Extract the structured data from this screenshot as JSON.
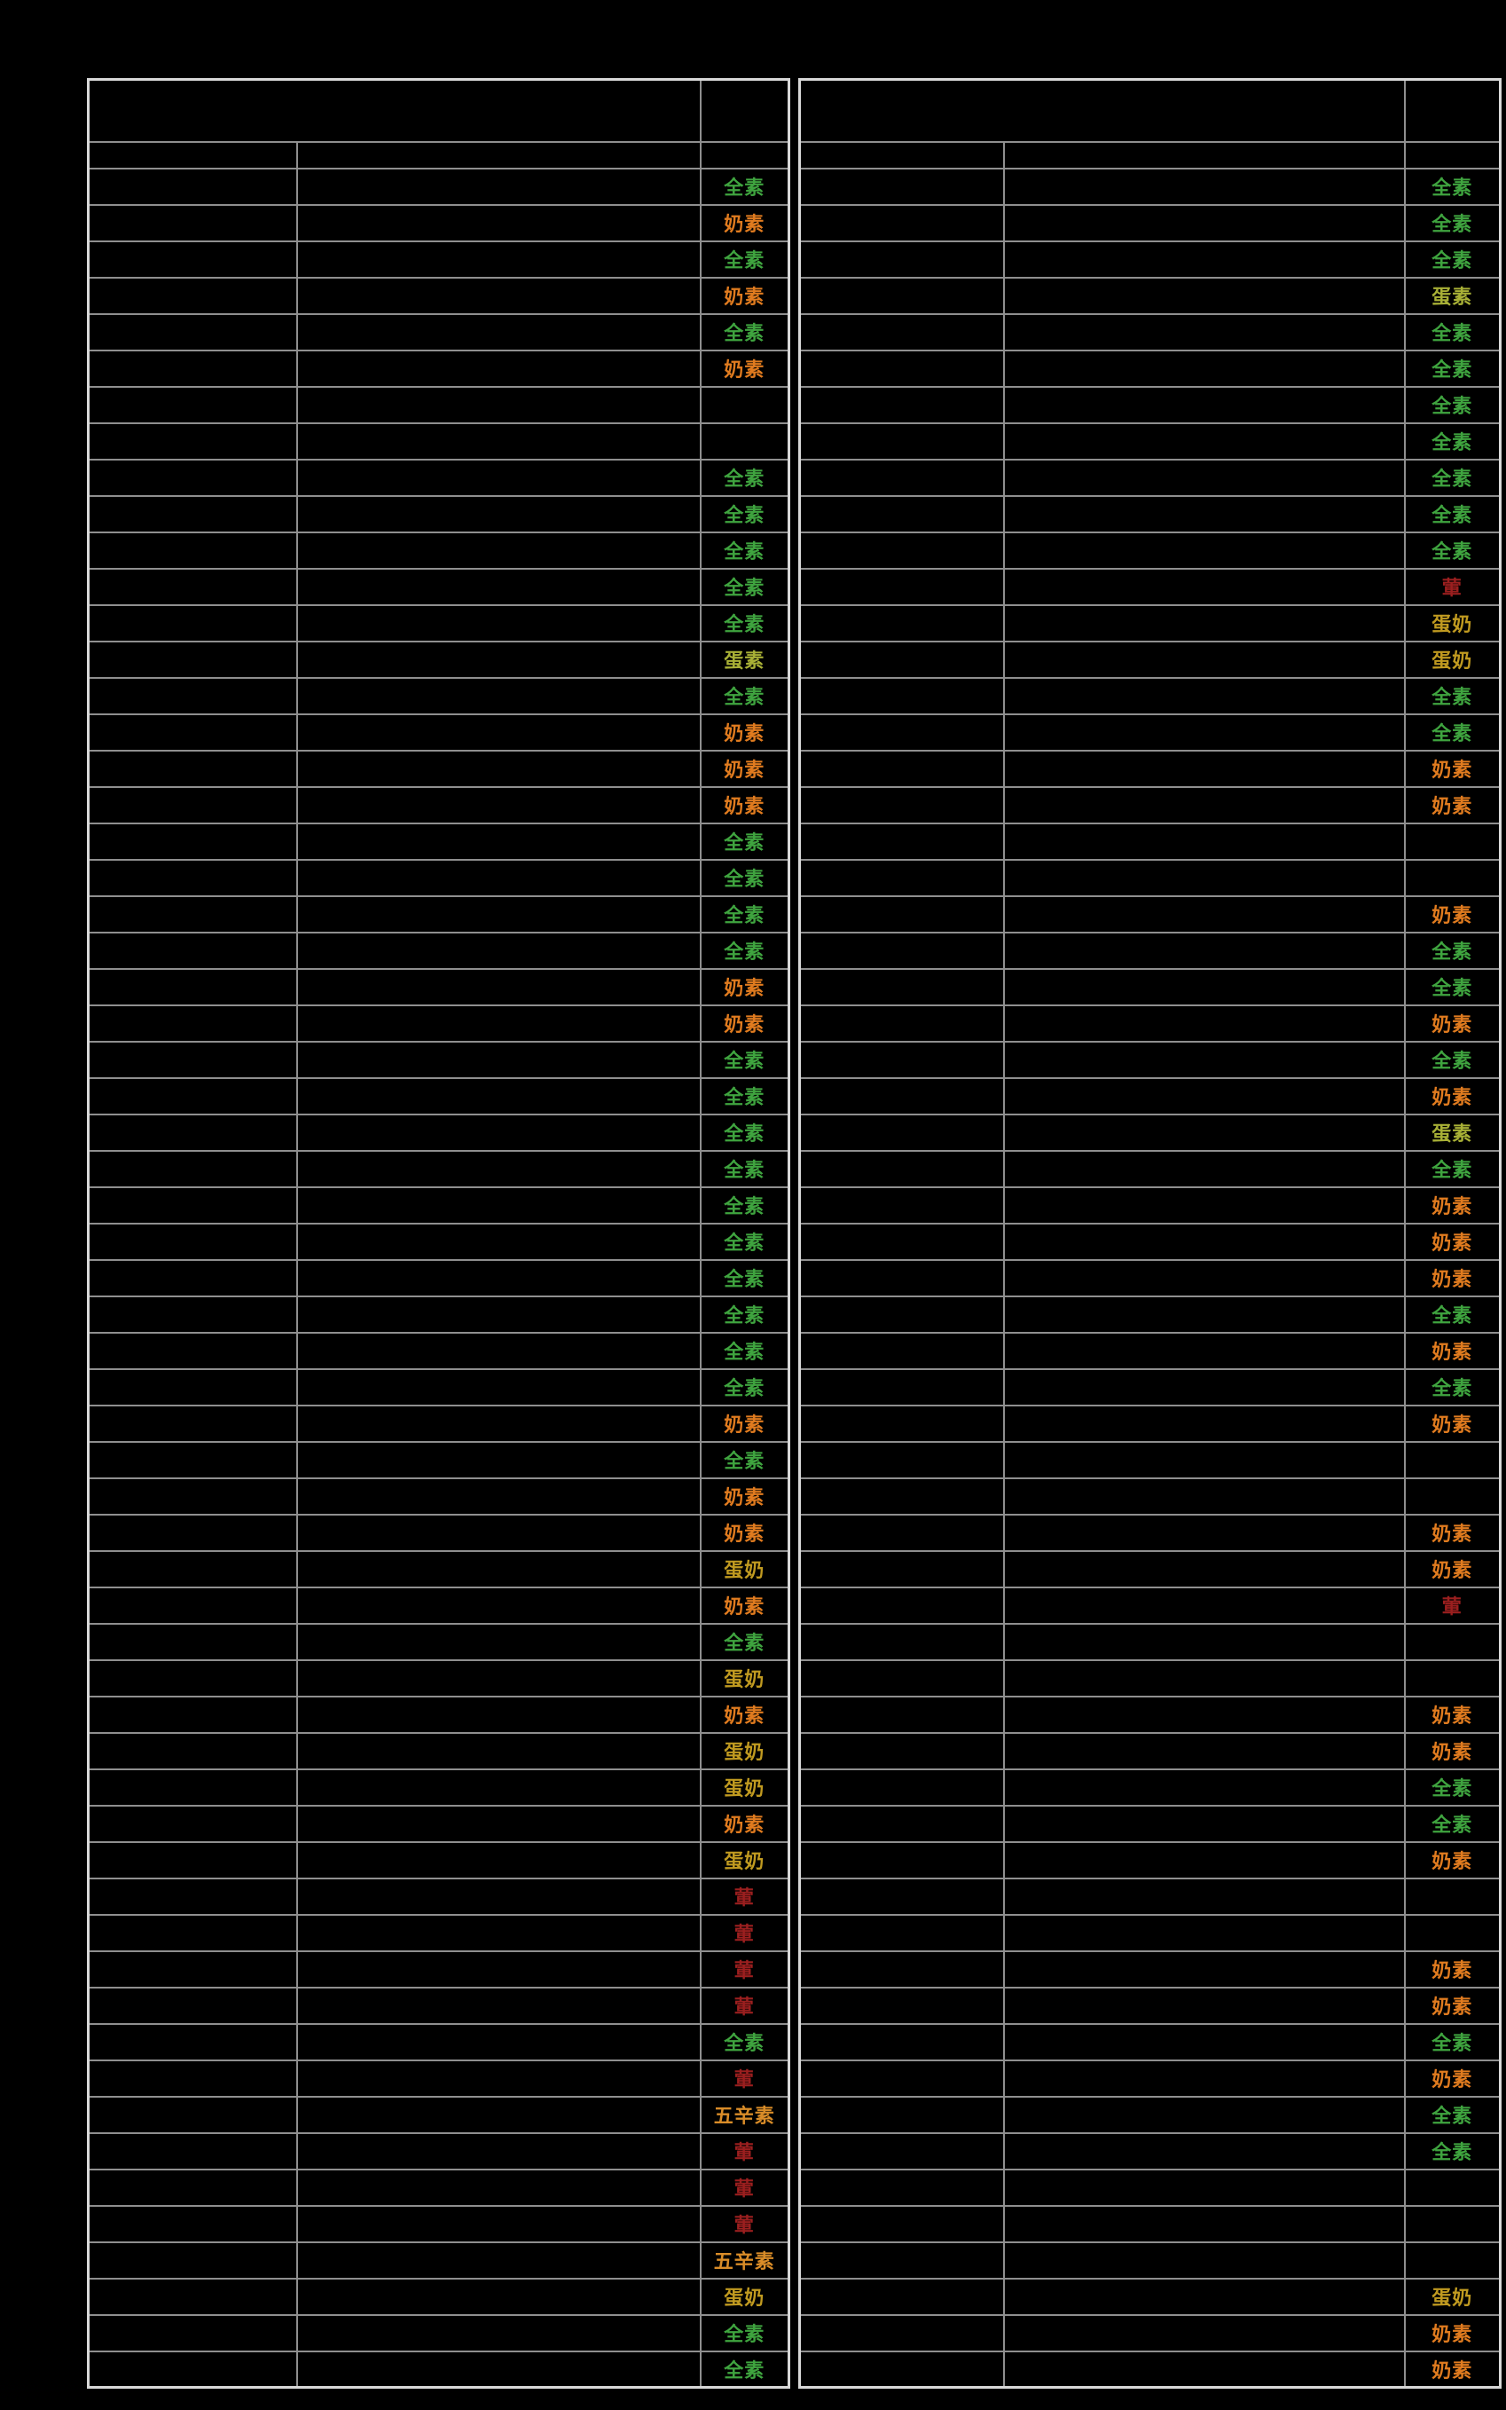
{
  "page": {
    "background_color": "#000000",
    "grid_line_color": "#8f8f8f",
    "outer_border_color": "#d8d8d8"
  },
  "diet_label_colors": {
    "全素": "#3fa43f",
    "奶素": "#e07b1f",
    "蛋素": "#a8b036",
    "蛋奶": "#c09a20",
    "葷": "#9b1f1f",
    "五辛素": "#d98c28"
  },
  "left_table": {
    "header": {
      "title": "",
      "category_col": "",
      "name_col": "",
      "label_col": ""
    },
    "diet_labels": [
      "全素",
      "奶素",
      "全素",
      "奶素",
      "全素",
      "奶素",
      "",
      "",
      "全素",
      "全素",
      "全素",
      "全素",
      "全素",
      "蛋素",
      "全素",
      "奶素",
      "奶素",
      "奶素",
      "全素",
      "全素",
      "全素",
      "全素",
      "奶素",
      "奶素",
      "全素",
      "全素",
      "全素",
      "全素",
      "全素",
      "全素",
      "全素",
      "全素",
      "全素",
      "全素",
      "奶素",
      "全素",
      "奶素",
      "奶素",
      "蛋奶",
      "奶素",
      "全素",
      "蛋奶",
      "奶素",
      "蛋奶",
      "蛋奶",
      "奶素",
      "蛋奶",
      "葷",
      "葷",
      "葷",
      "葷",
      "全素",
      "葷",
      "五辛素",
      "葷",
      "葷",
      "葷",
      "五辛素",
      "蛋奶",
      "全素",
      "全素"
    ]
  },
  "right_table": {
    "header": {
      "title": "",
      "category_col": "",
      "name_col": "",
      "label_col": ""
    },
    "diet_labels": [
      "全素",
      "全素",
      "全素",
      "蛋素",
      "全素",
      "全素",
      "全素",
      "全素",
      "全素",
      "全素",
      "全素",
      "葷",
      "蛋奶",
      "蛋奶",
      "全素",
      "全素",
      "奶素",
      "奶素",
      "",
      "",
      "奶素",
      "全素",
      "全素",
      "奶素",
      "全素",
      "奶素",
      "蛋素",
      "全素",
      "奶素",
      "奶素",
      "奶素",
      "全素",
      "奶素",
      "全素",
      "奶素",
      "",
      "",
      "奶素",
      "奶素",
      "葷",
      "",
      "",
      "奶素",
      "奶素",
      "全素",
      "全素",
      "奶素",
      "",
      "",
      "奶素",
      "奶素",
      "全素",
      "奶素",
      "全素",
      "全素",
      "",
      "",
      "",
      "蛋奶",
      "奶素",
      "奶素"
    ]
  }
}
